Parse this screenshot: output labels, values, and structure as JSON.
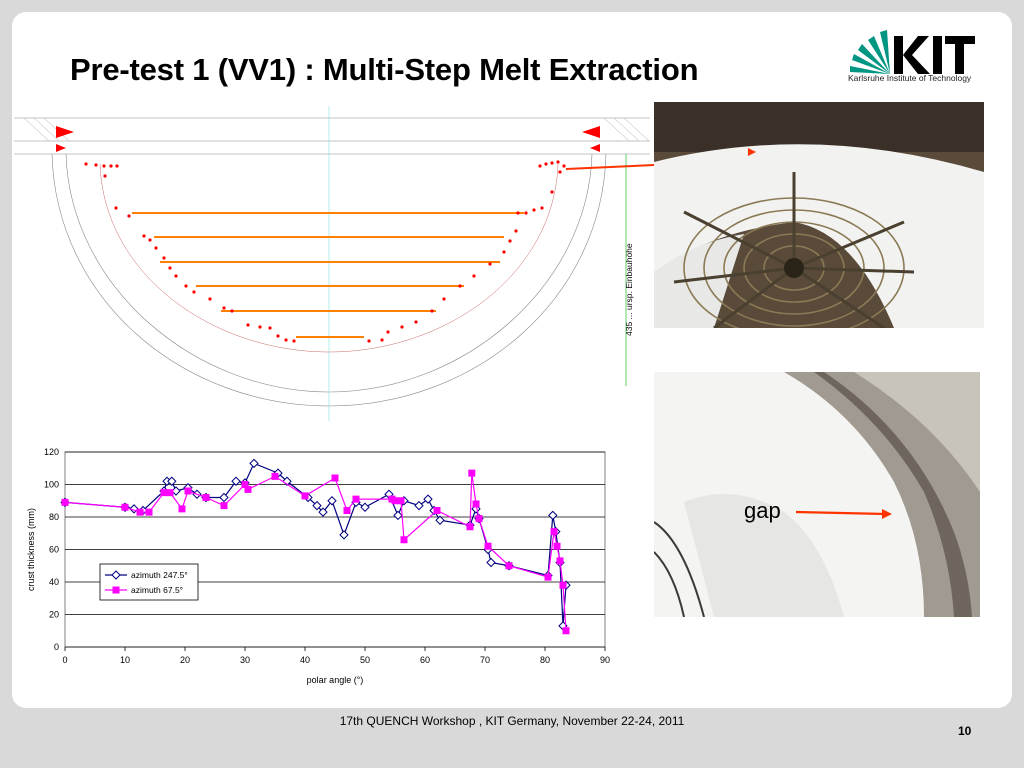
{
  "title": "Pre-test 1 (VV1) : Multi-Step Melt Extraction",
  "logo": {
    "text": "KIT",
    "subtitle": "Karlsruhe Institute of Technology"
  },
  "drawing": {
    "dimension_text": "435 ... ursp. Einbauhöhe"
  },
  "photos": {
    "gap_label": "gap"
  },
  "footer": "17th QUENCH Workshop , KIT Germany, November 22-24, 2011",
  "page_number": "10",
  "colors": {
    "series1": "#000080",
    "series2": "#ff00ff",
    "arrow": "#ff3300",
    "orange_lines": "#ff8000"
  },
  "chart_data": {
    "type": "line",
    "xlabel": "polar angle (°)",
    "ylabel": "crust thickness (mm)",
    "xlim": [
      0,
      90
    ],
    "ylim": [
      0,
      120
    ],
    "xticks": [
      0,
      10,
      20,
      30,
      40,
      50,
      60,
      70,
      80,
      90
    ],
    "yticks": [
      0,
      20,
      40,
      60,
      80,
      100,
      120
    ],
    "grid": "horizontal",
    "legend_position": "left",
    "series": [
      {
        "name": "azimuth 247.5°",
        "marker": "diamond-open",
        "color": "#000080",
        "points": [
          [
            0,
            89
          ],
          [
            10,
            86
          ],
          [
            11.5,
            85
          ],
          [
            13,
            84
          ],
          [
            16.5,
            96
          ],
          [
            17,
            102
          ],
          [
            17.8,
            102
          ],
          [
            18.5,
            96
          ],
          [
            20.5,
            98
          ],
          [
            22,
            94
          ],
          [
            23.5,
            92
          ],
          [
            26.5,
            92
          ],
          [
            28.5,
            102
          ],
          [
            30,
            101
          ],
          [
            31.5,
            113
          ],
          [
            35.5,
            107
          ],
          [
            37,
            102
          ],
          [
            40.5,
            92
          ],
          [
            42,
            87
          ],
          [
            43,
            83
          ],
          [
            44.5,
            90
          ],
          [
            46.5,
            69
          ],
          [
            48.5,
            89
          ],
          [
            50,
            86
          ],
          [
            54,
            94
          ],
          [
            55.5,
            81
          ],
          [
            56.5,
            90
          ],
          [
            59,
            87
          ],
          [
            60.5,
            91
          ],
          [
            61.5,
            84
          ],
          [
            62.5,
            78
          ],
          [
            67.5,
            75
          ],
          [
            68.5,
            85
          ],
          [
            69,
            79
          ],
          [
            70.5,
            60
          ],
          [
            71,
            52
          ],
          [
            74,
            50
          ],
          [
            80.5,
            44
          ],
          [
            81.3,
            81
          ],
          [
            81.8,
            71
          ],
          [
            82.5,
            52
          ],
          [
            83,
            13
          ],
          [
            83.5,
            38
          ]
        ]
      },
      {
        "name": "azimuth 67.5°",
        "marker": "square",
        "color": "#ff00ff",
        "points": [
          [
            0,
            89
          ],
          [
            10,
            86
          ],
          [
            12.5,
            83
          ],
          [
            14,
            83
          ],
          [
            16.5,
            95
          ],
          [
            17.5,
            95
          ],
          [
            19.5,
            85
          ],
          [
            20.5,
            96
          ],
          [
            23.5,
            92
          ],
          [
            26.5,
            87
          ],
          [
            30,
            100
          ],
          [
            30.5,
            97
          ],
          [
            35,
            105
          ],
          [
            40,
            93
          ],
          [
            45,
            104
          ],
          [
            47,
            84
          ],
          [
            48.5,
            91
          ],
          [
            54.5,
            91
          ],
          [
            55,
            90
          ],
          [
            56,
            90
          ],
          [
            56.5,
            66
          ],
          [
            62,
            84
          ],
          [
            67.5,
            74
          ],
          [
            67.8,
            107
          ],
          [
            68.5,
            88
          ],
          [
            69,
            79
          ],
          [
            70.5,
            62
          ],
          [
            74,
            50
          ],
          [
            80.5,
            43
          ],
          [
            81.5,
            71
          ],
          [
            82,
            62
          ],
          [
            82.5,
            53
          ],
          [
            83,
            38
          ],
          [
            83.5,
            10
          ]
        ]
      }
    ]
  }
}
